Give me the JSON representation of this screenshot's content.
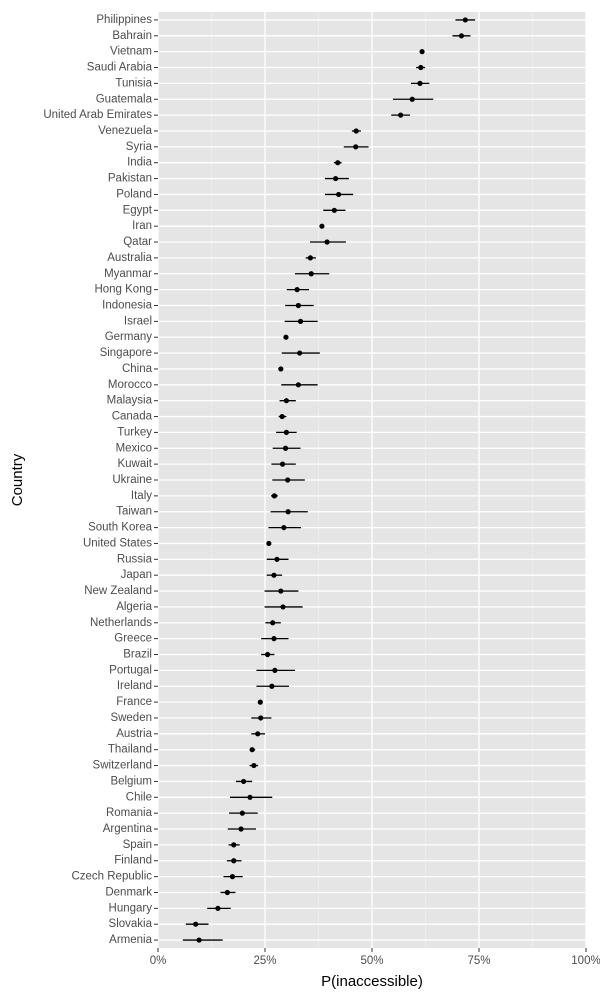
{
  "chart_data": {
    "type": "scatter",
    "xlabel": "P(inaccessible)",
    "ylabel": "Country",
    "xlim": [
      0,
      1
    ],
    "x_ticks": [
      {
        "value": 0,
        "label": "0%"
      },
      {
        "value": 0.25,
        "label": "25%"
      },
      {
        "value": 0.5,
        "label": "50%"
      },
      {
        "value": 0.75,
        "label": "75%"
      },
      {
        "value": 1,
        "label": "100%"
      }
    ],
    "grid": true,
    "point_color": "#000000",
    "panel_background": "#e5e5e5",
    "grid_color": "#ffffff",
    "points": [
      {
        "country": "Philippines",
        "value": 0.718,
        "low": 0.695,
        "high": 0.741
      },
      {
        "country": "Bahrain",
        "value": 0.709,
        "low": 0.688,
        "high": 0.73
      },
      {
        "country": "Vietnam",
        "value": 0.617,
        "low": 0.612,
        "high": 0.622
      },
      {
        "country": "Saudi Arabia",
        "value": 0.614,
        "low": 0.603,
        "high": 0.624
      },
      {
        "country": "Tunisia",
        "value": 0.612,
        "low": 0.591,
        "high": 0.634
      },
      {
        "country": "Guatemala",
        "value": 0.594,
        "low": 0.549,
        "high": 0.643
      },
      {
        "country": "United Arab Emirates",
        "value": 0.567,
        "low": 0.545,
        "high": 0.589
      },
      {
        "country": "Venezuela",
        "value": 0.463,
        "low": 0.453,
        "high": 0.474
      },
      {
        "country": "Syria",
        "value": 0.462,
        "low": 0.434,
        "high": 0.492
      },
      {
        "country": "India",
        "value": 0.42,
        "low": 0.411,
        "high": 0.429
      },
      {
        "country": "Pakistan",
        "value": 0.415,
        "low": 0.39,
        "high": 0.446
      },
      {
        "country": "Poland",
        "value": 0.422,
        "low": 0.39,
        "high": 0.456
      },
      {
        "country": "Egypt",
        "value": 0.412,
        "low": 0.386,
        "high": 0.438
      },
      {
        "country": "Iran",
        "value": 0.383,
        "low": 0.378,
        "high": 0.388
      },
      {
        "country": "Qatar",
        "value": 0.395,
        "low": 0.355,
        "high": 0.439
      },
      {
        "country": "Australia",
        "value": 0.356,
        "low": 0.345,
        "high": 0.369
      },
      {
        "country": "Myanmar",
        "value": 0.358,
        "low": 0.32,
        "high": 0.4
      },
      {
        "country": "Hong Kong",
        "value": 0.325,
        "low": 0.301,
        "high": 0.353
      },
      {
        "country": "Indonesia",
        "value": 0.328,
        "low": 0.297,
        "high": 0.364
      },
      {
        "country": "Israel",
        "value": 0.333,
        "low": 0.296,
        "high": 0.373
      },
      {
        "country": "Germany",
        "value": 0.299,
        "low": 0.294,
        "high": 0.304
      },
      {
        "country": "Singapore",
        "value": 0.331,
        "low": 0.289,
        "high": 0.378
      },
      {
        "country": "China",
        "value": 0.287,
        "low": 0.283,
        "high": 0.29
      },
      {
        "country": "Morocco",
        "value": 0.328,
        "low": 0.288,
        "high": 0.373
      },
      {
        "country": "Malaysia",
        "value": 0.3,
        "low": 0.284,
        "high": 0.322
      },
      {
        "country": "Canada",
        "value": 0.29,
        "low": 0.282,
        "high": 0.3
      },
      {
        "country": "Turkey",
        "value": 0.3,
        "low": 0.276,
        "high": 0.324
      },
      {
        "country": "Mexico",
        "value": 0.298,
        "low": 0.268,
        "high": 0.333
      },
      {
        "country": "Kuwait",
        "value": 0.291,
        "low": 0.265,
        "high": 0.322
      },
      {
        "country": "Ukraine",
        "value": 0.303,
        "low": 0.267,
        "high": 0.343
      },
      {
        "country": "Italy",
        "value": 0.272,
        "low": 0.264,
        "high": 0.28
      },
      {
        "country": "Taiwan",
        "value": 0.304,
        "low": 0.263,
        "high": 0.35
      },
      {
        "country": "South Korea",
        "value": 0.294,
        "low": 0.258,
        "high": 0.334
      },
      {
        "country": "United States",
        "value": 0.259,
        "low": 0.255,
        "high": 0.262
      },
      {
        "country": "Russia",
        "value": 0.278,
        "low": 0.254,
        "high": 0.305
      },
      {
        "country": "Japan",
        "value": 0.271,
        "low": 0.254,
        "high": 0.29
      },
      {
        "country": "New Zealand",
        "value": 0.287,
        "low": 0.249,
        "high": 0.328
      },
      {
        "country": "Algeria",
        "value": 0.292,
        "low": 0.249,
        "high": 0.338
      },
      {
        "country": "Netherlands",
        "value": 0.268,
        "low": 0.251,
        "high": 0.287
      },
      {
        "country": "Greece",
        "value": 0.271,
        "low": 0.241,
        "high": 0.305
      },
      {
        "country": "Brazil",
        "value": 0.256,
        "low": 0.241,
        "high": 0.272
      },
      {
        "country": "Portugal",
        "value": 0.273,
        "low": 0.23,
        "high": 0.32
      },
      {
        "country": "Ireland",
        "value": 0.266,
        "low": 0.23,
        "high": 0.306
      },
      {
        "country": "France",
        "value": 0.239,
        "low": 0.234,
        "high": 0.244
      },
      {
        "country": "Sweden",
        "value": 0.24,
        "low": 0.218,
        "high": 0.265
      },
      {
        "country": "Austria",
        "value": 0.233,
        "low": 0.218,
        "high": 0.25
      },
      {
        "country": "Thailand",
        "value": 0.22,
        "low": 0.214,
        "high": 0.227
      },
      {
        "country": "Switzerland",
        "value": 0.224,
        "low": 0.214,
        "high": 0.234
      },
      {
        "country": "Belgium",
        "value": 0.2,
        "low": 0.182,
        "high": 0.22
      },
      {
        "country": "Chile",
        "value": 0.215,
        "low": 0.168,
        "high": 0.267
      },
      {
        "country": "Romania",
        "value": 0.197,
        "low": 0.166,
        "high": 0.233
      },
      {
        "country": "Argentina",
        "value": 0.194,
        "low": 0.163,
        "high": 0.229
      },
      {
        "country": "Spain",
        "value": 0.177,
        "low": 0.165,
        "high": 0.191
      },
      {
        "country": "Finland",
        "value": 0.177,
        "low": 0.161,
        "high": 0.195
      },
      {
        "country": "Czech Republic",
        "value": 0.174,
        "low": 0.153,
        "high": 0.198
      },
      {
        "country": "Denmark",
        "value": 0.162,
        "low": 0.146,
        "high": 0.181
      },
      {
        "country": "Hungary",
        "value": 0.14,
        "low": 0.115,
        "high": 0.17
      },
      {
        "country": "Slovakia",
        "value": 0.088,
        "low": 0.065,
        "high": 0.118
      },
      {
        "country": "Armenia",
        "value": 0.096,
        "low": 0.058,
        "high": 0.151
      }
    ]
  }
}
